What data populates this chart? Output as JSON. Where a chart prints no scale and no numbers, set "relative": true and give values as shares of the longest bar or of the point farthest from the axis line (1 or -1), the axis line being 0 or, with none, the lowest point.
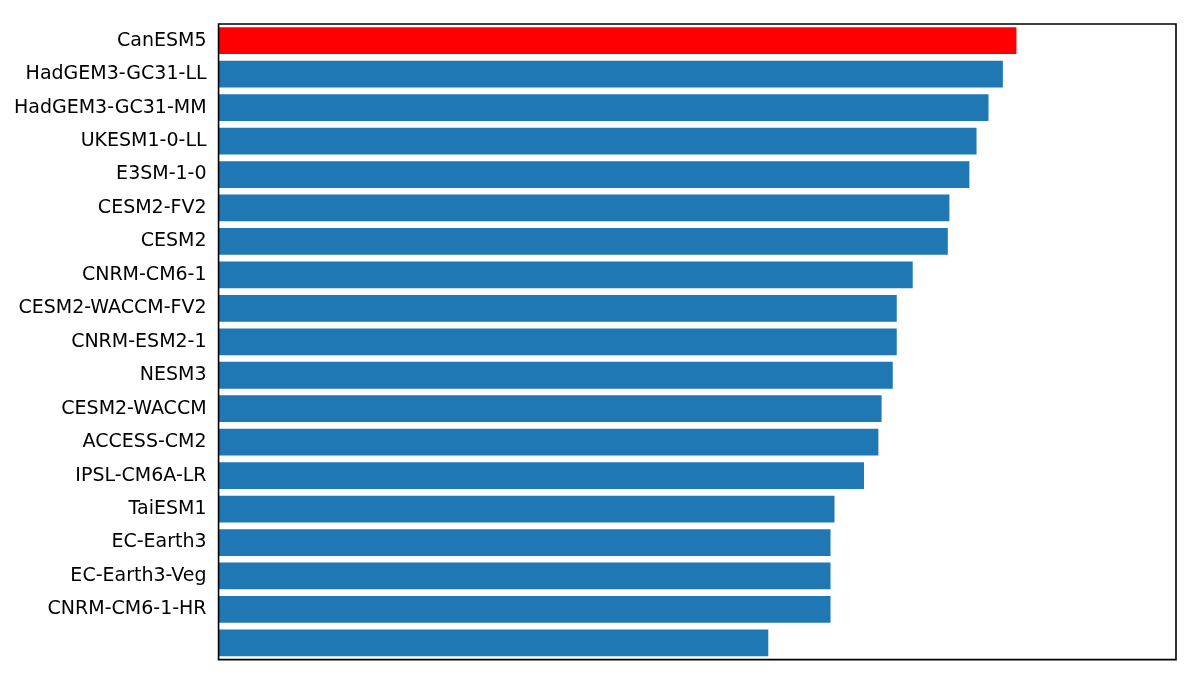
{
  "chart_data": {
    "type": "bar",
    "orientation": "horizontal",
    "relative": true,
    "categories": [
      "CanESM5",
      "HadGEM3-GC31-LL",
      "HadGEM3-GC31-MM",
      "UKESM1-0-LL",
      "E3SM-1-0",
      "CESM2-FV2",
      "CESM2",
      "CNRM-CM6-1",
      "CESM2-WACCM-FV2",
      "CNRM-ESM2-1",
      "NESM3",
      "CESM2-WACCM",
      "ACCESS-CM2",
      "IPSL-CM6A-LR",
      "TaiESM1",
      "EC-Earth3",
      "EC-Earth3-Veg",
      "CNRM-CM6-1-HR",
      null
    ],
    "values": [
      1,
      0.983,
      0.965,
      0.95,
      0.941,
      0.916,
      0.914,
      0.87,
      0.85,
      0.85,
      0.845,
      0.831,
      0.827,
      0.809,
      0.772,
      0.767,
      0.767,
      0.767,
      0.689
    ],
    "colors": [
      "#ff0000",
      "#1f77b4",
      "#1f77b4",
      "#1f77b4",
      "#1f77b4",
      "#1f77b4",
      "#1f77b4",
      "#1f77b4",
      "#1f77b4",
      "#1f77b4",
      "#1f77b4",
      "#1f77b4",
      "#1f77b4",
      "#1f77b4",
      "#1f77b4",
      "#1f77b4",
      "#1f77b4",
      "#1f77b4",
      "#1f77b4"
    ],
    "grid": false,
    "legend": false
  }
}
